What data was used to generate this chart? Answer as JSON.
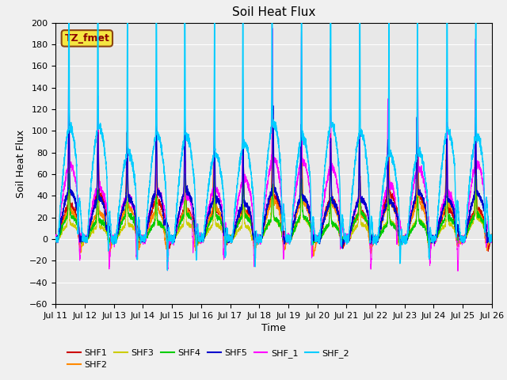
{
  "title": "Soil Heat Flux",
  "xlabel": "Time",
  "ylabel": "Soil Heat Flux",
  "ylim": [
    -60,
    200
  ],
  "yticks": [
    -60,
    -40,
    -20,
    0,
    20,
    40,
    60,
    80,
    100,
    120,
    140,
    160,
    180,
    200
  ],
  "x_tick_labels": [
    "Jul 11",
    "Jul 12",
    "Jul 13",
    "Jul 14",
    "Jul 15",
    "Jul 16",
    "Jul 17",
    "Jul 18",
    "Jul 19",
    "Jul 20",
    "Jul 21",
    "Jul 22",
    "Jul 23",
    "Jul 24",
    "Jul 25",
    "Jul 26"
  ],
  "annotation_text": "TZ_fmet",
  "annotation_bbox_facecolor": "#f5e642",
  "annotation_bbox_edgecolor": "#8B4513",
  "series_colors": {
    "SHF1": "#cc0000",
    "SHF2": "#ff8800",
    "SHF3": "#cccc00",
    "SHF4": "#00cc00",
    "SHF5": "#0000cc",
    "SHF_1": "#ff00ff",
    "SHF_2": "#00ccff"
  },
  "background_color": "#e8e8e8",
  "grid_color": "#ffffff",
  "title_fontsize": 11,
  "axis_label_fontsize": 9,
  "tick_fontsize": 8,
  "legend_fontsize": 8,
  "n_days": 15,
  "pts_per_day": 288
}
